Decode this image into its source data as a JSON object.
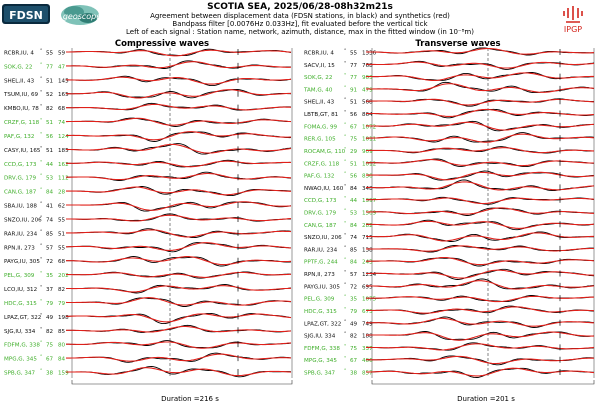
{
  "header": {
    "title": "SCOTIA SEA, 2025/06/28-08h32m21s",
    "subtitle_1": "Agreement between displacement data (FDSN stations, in black) and synthetics (red)",
    "subtitle_2": "Bandpass filter [0.0076Hz 0.033Hz], fit evaluated before the vertical tick",
    "subtitle_3": "Left of each signal : Station name, network, azimuth, distance, max in the fitted window (in 10⁻⁸m)"
  },
  "logos": {
    "fdsn": "FDSN",
    "geoscope": "geoscope",
    "ipgp": "IPGP"
  },
  "colors": {
    "data": "#000000",
    "synthetic": "#e0201a",
    "green_label": "#3fae2a",
    "black_label": "#111111",
    "ipgp_red": "#d4261e",
    "fdsn_bg": "#0a2a3e",
    "geoscope_teal": "#5aa9a0"
  },
  "chart_data": [
    {
      "type": "line",
      "title": "Compressive waves",
      "series_legend": [
        "data (black)",
        "synthetics (red)"
      ],
      "duration_label": "Duration =216 s",
      "stations": [
        {
          "label": "RCBR,IU, 4",
          "az": "°",
          "dist": "55",
          "max": "59",
          "green": false
        },
        {
          "label": "SOK,G, 22",
          "az": "°",
          "dist": "77",
          "max": "47",
          "green": true
        },
        {
          "label": "SHEL,II, 43",
          "az": "°",
          "dist": "51",
          "max": "145",
          "green": false
        },
        {
          "label": "TSUM,IU, 69",
          "az": "°",
          "dist": "52",
          "max": "165",
          "green": false
        },
        {
          "label": "KMBO,IU, 78",
          "az": "°",
          "dist": "82",
          "max": "68",
          "green": false
        },
        {
          "label": "CRZF,G, 118",
          "az": "°",
          "dist": "51",
          "max": "74",
          "green": true
        },
        {
          "label": "PAF,G, 132",
          "az": "°",
          "dist": "56",
          "max": "124",
          "green": true
        },
        {
          "label": "CASY,IU, 165",
          "az": "°",
          "dist": "51",
          "max": "185",
          "green": false
        },
        {
          "label": "CCD,G, 173",
          "az": "°",
          "dist": "44",
          "max": "162",
          "green": true
        },
        {
          "label": "DRV,G, 179",
          "az": "°",
          "dist": "53",
          "max": "112",
          "green": true
        },
        {
          "label": "CAN,G, 187",
          "az": "°",
          "dist": "84",
          "max": "28",
          "green": true
        },
        {
          "label": "SBA,IU, 188",
          "az": "°",
          "dist": "41",
          "max": "62",
          "green": false
        },
        {
          "label": "SNZO,IU, 206",
          "az": "°",
          "dist": "74",
          "max": "55",
          "green": false
        },
        {
          "label": "RAR,IU, 234",
          "az": "°",
          "dist": "85",
          "max": "51",
          "green": false
        },
        {
          "label": "RPN,II, 273",
          "az": "°",
          "dist": "57",
          "max": "55",
          "green": false
        },
        {
          "label": "PAYG,IU, 305",
          "az": "°",
          "dist": "72",
          "max": "68",
          "green": false
        },
        {
          "label": "PEL,G, 309",
          "az": "°",
          "dist": "35",
          "max": "202",
          "green": true
        },
        {
          "label": "LCO,IU, 312",
          "az": "°",
          "dist": "37",
          "max": "82",
          "green": false
        },
        {
          "label": "HDC,G, 315",
          "az": "°",
          "dist": "79",
          "max": "79",
          "green": true
        },
        {
          "label": "LPAZ,GT, 322",
          "az": "°",
          "dist": "49",
          "max": "198",
          "green": false
        },
        {
          "label": "SJG,IU, 334",
          "az": "°",
          "dist": "82",
          "max": "85",
          "green": false
        },
        {
          "label": "FDFM,G, 338",
          "az": "°",
          "dist": "75",
          "max": "80",
          "green": true
        },
        {
          "label": "MPG,G, 345",
          "az": "°",
          "dist": "67",
          "max": "84",
          "green": true
        },
        {
          "label": "SPB,G, 347",
          "az": "°",
          "dist": "38",
          "max": "159",
          "green": true
        }
      ]
    },
    {
      "type": "line",
      "title": "Transverse waves",
      "series_legend": [
        "data (black)",
        "synthetics (red)"
      ],
      "duration_label": "Duration =201 s",
      "stations": [
        {
          "label": "RCBR,IU, 4",
          "az": "°",
          "dist": "55",
          "max": "1336",
          "green": false
        },
        {
          "label": "SACV,II, 15",
          "az": "°",
          "dist": "77",
          "max": "768",
          "green": false
        },
        {
          "label": "SOK,G, 22",
          "az": "°",
          "dist": "77",
          "max": "903",
          "green": true
        },
        {
          "label": "TAM,G, 40",
          "az": "°",
          "dist": "91",
          "max": "479",
          "green": true
        },
        {
          "label": "SHEL,II, 43",
          "az": "°",
          "dist": "51",
          "max": "568",
          "green": false
        },
        {
          "label": "LBTB,GT, 81",
          "az": "°",
          "dist": "56",
          "max": "864",
          "green": false
        },
        {
          "label": "FOMA,G, 99",
          "az": "°",
          "dist": "67",
          "max": "1072",
          "green": true
        },
        {
          "label": "RER,G, 105",
          "az": "°",
          "dist": "75",
          "max": "1011",
          "green": true
        },
        {
          "label": "ROCAM,G, 110",
          "az": "°",
          "dist": "29",
          "max": "909",
          "green": true
        },
        {
          "label": "CRZF,G, 118",
          "az": "°",
          "dist": "51",
          "max": "1012",
          "green": true
        },
        {
          "label": "PAF,G, 132",
          "az": "°",
          "dist": "56",
          "max": "830",
          "green": true
        },
        {
          "label": "NWAO,IU, 160",
          "az": "°",
          "dist": "84",
          "max": "348",
          "green": false
        },
        {
          "label": "CCD,G, 173",
          "az": "°",
          "dist": "44",
          "max": "1397",
          "green": true
        },
        {
          "label": "DRV,G, 179",
          "az": "°",
          "dist": "53",
          "max": "1509",
          "green": true
        },
        {
          "label": "CAN,G, 187",
          "az": "°",
          "dist": "84",
          "max": "282",
          "green": true
        },
        {
          "label": "SNZO,IU, 206",
          "az": "°",
          "dist": "74",
          "max": "715",
          "green": false
        },
        {
          "label": "RAR,IU, 234",
          "az": "°",
          "dist": "85",
          "max": "138",
          "green": false
        },
        {
          "label": "PPTF,G, 244",
          "az": "°",
          "dist": "84",
          "max": "243",
          "green": true
        },
        {
          "label": "RPN,II, 273",
          "az": "°",
          "dist": "57",
          "max": "1234",
          "green": false
        },
        {
          "label": "PAYG,IU, 305",
          "az": "°",
          "dist": "72",
          "max": "695",
          "green": false
        },
        {
          "label": "PEL,G, 309",
          "az": "°",
          "dist": "35",
          "max": "1075",
          "green": true
        },
        {
          "label": "HDC,G, 315",
          "az": "°",
          "dist": "79",
          "max": "673",
          "green": true
        },
        {
          "label": "LPAZ,GT, 322",
          "az": "°",
          "dist": "49",
          "max": "749",
          "green": false
        },
        {
          "label": "SJG,IU, 334",
          "az": "°",
          "dist": "82",
          "max": "188",
          "green": false
        },
        {
          "label": "FDFM,G, 338",
          "az": "°",
          "dist": "75",
          "max": "337",
          "green": true
        },
        {
          "label": "MPG,G, 345",
          "az": "°",
          "dist": "67",
          "max": "406",
          "green": true
        },
        {
          "label": "SPB,G, 347",
          "az": "°",
          "dist": "38",
          "max": "857",
          "green": true
        }
      ]
    }
  ]
}
